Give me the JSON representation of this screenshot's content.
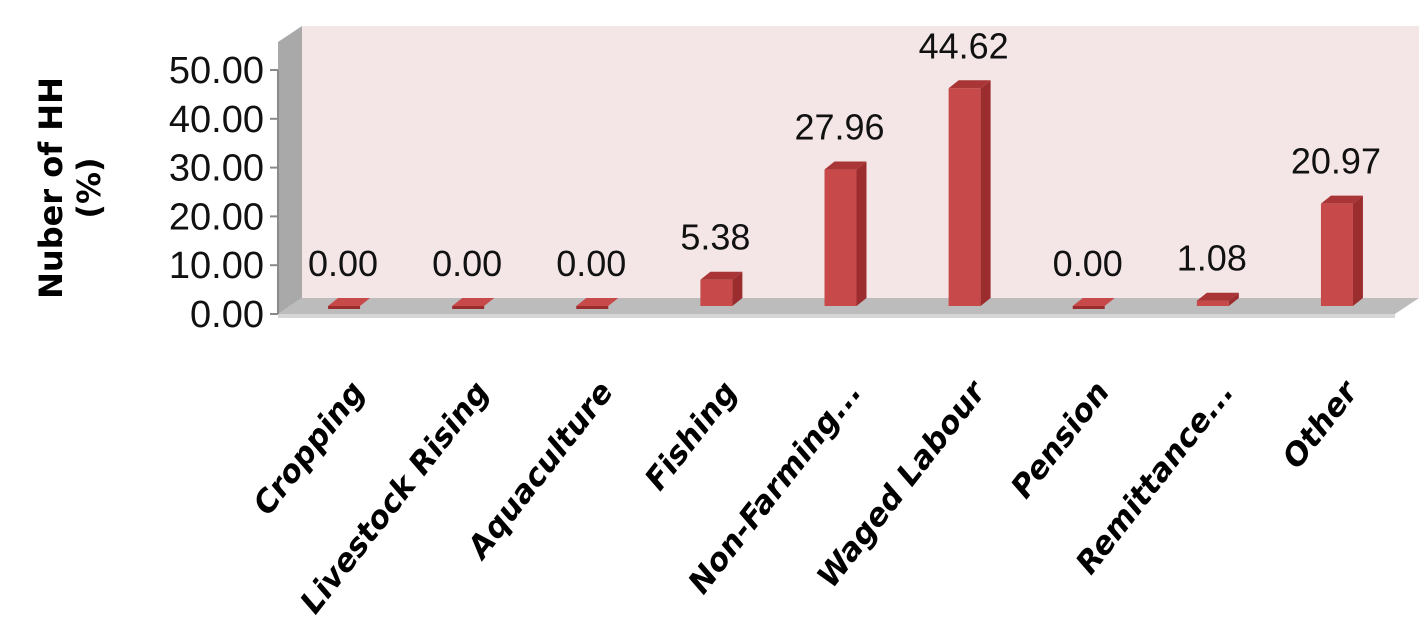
{
  "chart_data": {
    "type": "bar",
    "title": "",
    "xlabel": "",
    "ylabel": [
      "Nuber of HH",
      "(%)"
    ],
    "categories": [
      "Cropping",
      "Livestock Rising",
      "Aquaculture",
      "Fishing",
      "Non-Farming...",
      "Waged Labour",
      "Pension",
      "Remittance...",
      "Other"
    ],
    "values": [
      0.0,
      0.0,
      0.0,
      5.38,
      27.96,
      44.62,
      0.0,
      1.08,
      20.97
    ],
    "value_labels": [
      "0.00",
      "0.00",
      "0.00",
      "5.38",
      "27.96",
      "44.62",
      "0.00",
      "1.08",
      "20.97"
    ],
    "yticks": [
      "0.00",
      "10.00",
      "20.00",
      "30.00",
      "40.00",
      "50.00"
    ],
    "ylim": [
      0,
      50
    ],
    "style": "3d-column",
    "grid": false,
    "legend": "none",
    "colors": {
      "bar_front": "#c8494a",
      "bar_side": "#9c2d2f",
      "bar_top": "#a93537",
      "back_wall": "#f4e6e6",
      "floor": "#bcbcbc",
      "side_wall": "#a9a9a9"
    }
  }
}
